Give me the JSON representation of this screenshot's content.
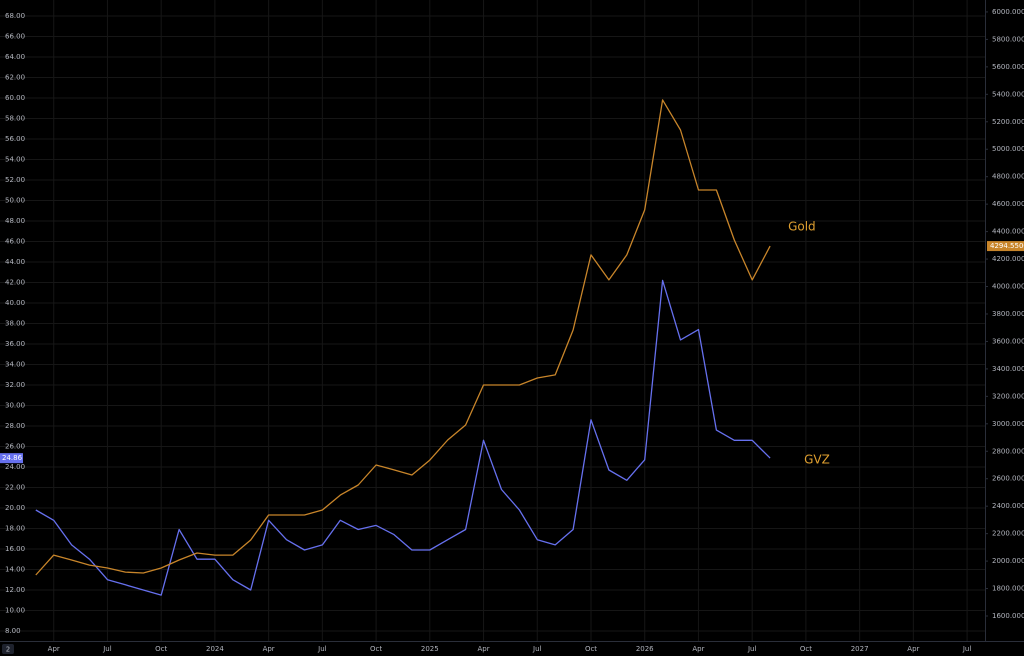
{
  "chart_data": {
    "type": "line",
    "x": [
      "2023-03",
      "2023-04",
      "2023-05",
      "2023-06",
      "2023-07",
      "2023-08",
      "2023-09",
      "2023-10",
      "2023-11",
      "2023-12",
      "2024-01",
      "2024-02",
      "2024-03",
      "2024-04",
      "2024-05",
      "2024-06",
      "2024-07",
      "2024-08",
      "2024-09",
      "2024-10",
      "2024-11",
      "2024-12",
      "2025-01",
      "2025-02",
      "2025-03",
      "2025-04",
      "2025-05",
      "2025-06",
      "2025-07",
      "2025-08",
      "2025-09",
      "2025-10",
      "2025-11",
      "2025-12",
      "2026-01",
      "2026-02",
      "2026-03",
      "2026-04",
      "2026-05",
      "2026-06",
      "2026-07",
      "2026-08"
    ],
    "series": [
      {
        "name": "GVZ",
        "color": "#6670ee",
        "axis": "y",
        "price_label": "24.86",
        "values": [
          19.8,
          18.8,
          16.4,
          15.0,
          13.0,
          12.5,
          12.0,
          11.5,
          17.9,
          15.0,
          15.0,
          13.0,
          12.0,
          18.8,
          16.9,
          15.9,
          16.4,
          18.8,
          17.9,
          18.3,
          17.4,
          15.9,
          15.9,
          16.9,
          17.9,
          26.6,
          21.8,
          19.8,
          16.9,
          16.4,
          17.9,
          28.6,
          23.7,
          22.7,
          24.7,
          42.2,
          36.4,
          37.4,
          27.6,
          26.6,
          26.6,
          24.86
        ]
      },
      {
        "name": "Gold",
        "color": "#c8852a",
        "axis": "y2",
        "price_label": "4294.5500",
        "values": [
          1899,
          2044,
          2008,
          1971,
          1950,
          1920,
          1913,
          1950,
          2008,
          2059,
          2044,
          2044,
          2154,
          2336,
          2336,
          2336,
          2372,
          2481,
          2554,
          2700,
          2664,
          2627,
          2736,
          2882,
          2991,
          3283,
          3283,
          3283,
          3334,
          3356,
          3683,
          4230,
          4048,
          4230,
          4558,
          5359,
          5140,
          4703,
          4703,
          4339,
          4048,
          4294.55
        ]
      }
    ],
    "annotations": [
      "Gold",
      "GVZ"
    ],
    "corner_label": "2",
    "xlim": [
      "2023-01",
      "2027-08"
    ],
    "xticks": [
      {
        "value": "2023-04",
        "label": "Apr"
      },
      {
        "value": "2023-07",
        "label": "Jul"
      },
      {
        "value": "2023-10",
        "label": "Oct"
      },
      {
        "value": "2024-01",
        "label": "2024"
      },
      {
        "value": "2024-04",
        "label": "Apr"
      },
      {
        "value": "2024-07",
        "label": "Jul"
      },
      {
        "value": "2024-10",
        "label": "Oct"
      },
      {
        "value": "2025-01",
        "label": "2025"
      },
      {
        "value": "2025-04",
        "label": "Apr"
      },
      {
        "value": "2025-07",
        "label": "Jul"
      },
      {
        "value": "2025-10",
        "label": "Oct"
      },
      {
        "value": "2026-01",
        "label": "2026"
      },
      {
        "value": "2026-04",
        "label": "Apr"
      },
      {
        "value": "2026-07",
        "label": "Jul"
      },
      {
        "value": "2026-10",
        "label": "Oct"
      },
      {
        "value": "2027-01",
        "label": "2027"
      },
      {
        "value": "2027-04",
        "label": "Apr"
      },
      {
        "value": "2027-07",
        "label": "Jul"
      }
    ],
    "ylim": [
      7.02,
      69.56
    ],
    "yticks": [
      {
        "value": 8,
        "label": "8.00"
      },
      {
        "value": 10,
        "label": "10.00"
      },
      {
        "value": 12,
        "label": "12.00"
      },
      {
        "value": 14,
        "label": "14.00"
      },
      {
        "value": 16,
        "label": "16.00"
      },
      {
        "value": 18,
        "label": "18.00"
      },
      {
        "value": 20,
        "label": "20.00"
      },
      {
        "value": 22,
        "label": "22.00"
      },
      {
        "value": 24,
        "label": "24.00"
      },
      {
        "value": 26,
        "label": "26.00"
      },
      {
        "value": 28,
        "label": "28.00"
      },
      {
        "value": 30,
        "label": "30.00"
      },
      {
        "value": 32,
        "label": "32.00"
      },
      {
        "value": 34,
        "label": "34.00"
      },
      {
        "value": 36,
        "label": "36.00"
      },
      {
        "value": 38,
        "label": "38.00"
      },
      {
        "value": 40,
        "label": "40.00"
      },
      {
        "value": 42,
        "label": "42.00"
      },
      {
        "value": 44,
        "label": "44.00"
      },
      {
        "value": 46,
        "label": "46.00"
      },
      {
        "value": 48,
        "label": "48.00"
      },
      {
        "value": 50,
        "label": "50.00"
      },
      {
        "value": 52,
        "label": "52.00"
      },
      {
        "value": 54,
        "label": "54.00"
      },
      {
        "value": 56,
        "label": "56.00"
      },
      {
        "value": 58,
        "label": "58.00"
      },
      {
        "value": 60,
        "label": "60.00"
      },
      {
        "value": 62,
        "label": "62.00"
      },
      {
        "value": 64,
        "label": "64.00"
      },
      {
        "value": 66,
        "label": "66.00"
      },
      {
        "value": 68,
        "label": "68.00"
      }
    ],
    "y2lim": [
      1418,
      6087
    ],
    "y2ticks": [
      {
        "value": 1600,
        "label": "1600.0000"
      },
      {
        "value": 1800,
        "label": "1800.0000"
      },
      {
        "value": 2000,
        "label": "2000.0000"
      },
      {
        "value": 2200,
        "label": "2200.0000"
      },
      {
        "value": 2400,
        "label": "2400.0000"
      },
      {
        "value": 2600,
        "label": "2600.0000"
      },
      {
        "value": 2800,
        "label": "2800.0000"
      },
      {
        "value": 3000,
        "label": "3000.0000"
      },
      {
        "value": 3200,
        "label": "3200.0000"
      },
      {
        "value": 3400,
        "label": "3400.0000"
      },
      {
        "value": 3600,
        "label": "3600.0000"
      },
      {
        "value": 3800,
        "label": "3800.0000"
      },
      {
        "value": 4000,
        "label": "4000.0000"
      },
      {
        "value": 4200,
        "label": "4200.0000"
      },
      {
        "value": 4400,
        "label": "4400.0000"
      },
      {
        "value": 4600,
        "label": "4600.0000"
      },
      {
        "value": 4800,
        "label": "4800.0000"
      },
      {
        "value": 5000,
        "label": "5000.0000"
      },
      {
        "value": 5200,
        "label": "5200.0000"
      },
      {
        "value": 5400,
        "label": "5400.0000"
      },
      {
        "value": 5600,
        "label": "5600.0000"
      },
      {
        "value": 5800,
        "label": "5800.0000"
      },
      {
        "value": 6000,
        "label": "6000.0000"
      }
    ],
    "grid": true
  }
}
